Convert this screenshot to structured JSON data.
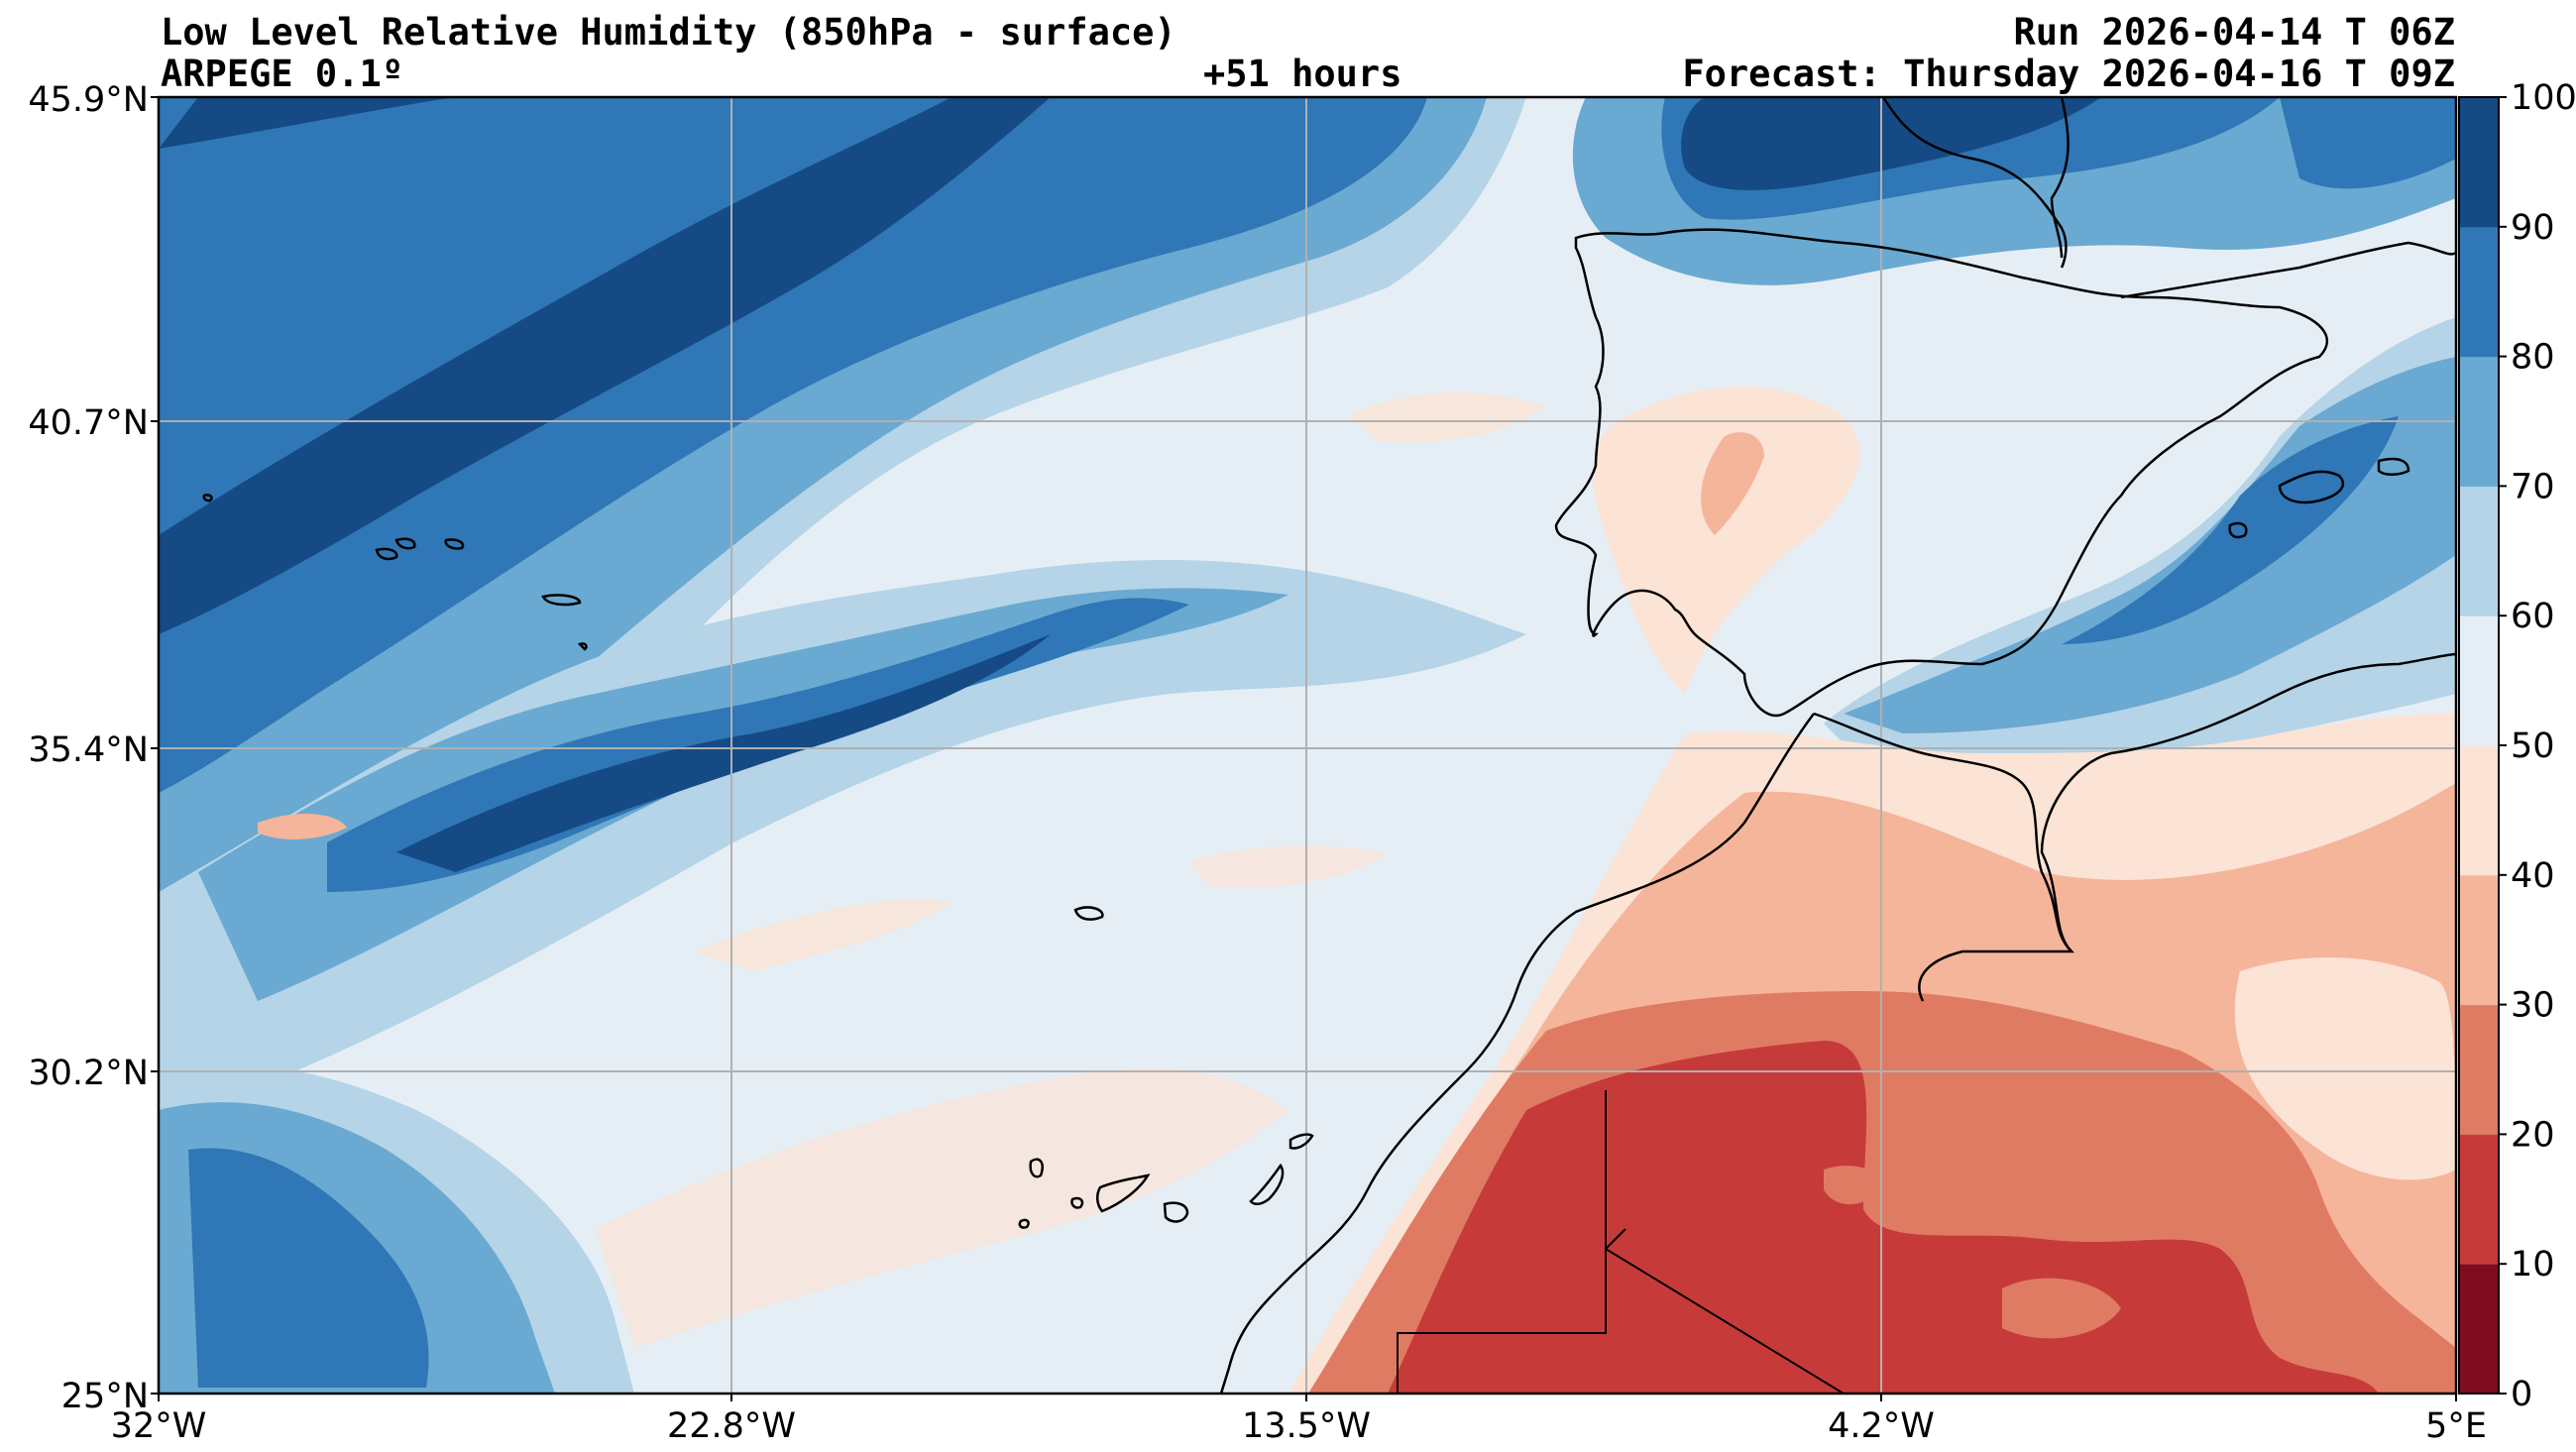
{
  "header": {
    "title": "Low Level Relative Humidity (850hPa - surface)",
    "model": "ARPEGE 0.1º",
    "lead_time": "+51 hours",
    "run": "Run 2026-04-14 T 06Z",
    "forecast": "Forecast: Thursday 2026-04-16 T 09Z"
  },
  "map": {
    "lon_range": [
      -32,
      5
    ],
    "lat_range": [
      25,
      45.9
    ],
    "lon_ticks": [
      "32°W",
      "22.8°W",
      "13.5°W",
      "4.2°W",
      "5°E"
    ],
    "lat_ticks": [
      "45.9°N",
      "40.7°N",
      "35.4°N",
      "30.2°N",
      "25°N"
    ],
    "grid": true
  },
  "colorbar": {
    "ticks": [
      "100",
      "90",
      "80",
      "70",
      "60",
      "50",
      "40",
      "30",
      "20",
      "10",
      "0"
    ],
    "colors": [
      "#7f0d1f",
      "#c63b3a",
      "#e07b63",
      "#f5b59a",
      "#fbe3d6",
      "#e6eef5",
      "#b5d4e7",
      "#6aa9d1",
      "#2f77b6",
      "#154a85"
    ]
  }
}
